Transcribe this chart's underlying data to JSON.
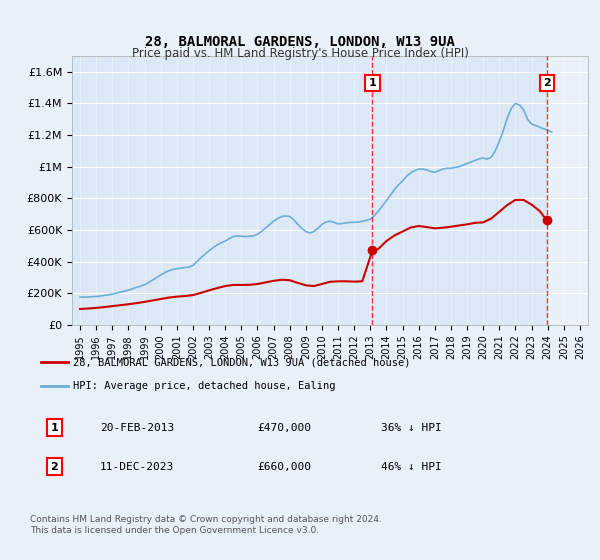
{
  "title": "28, BALMORAL GARDENS, LONDON, W13 9UA",
  "subtitle": "Price paid vs. HM Land Registry's House Price Index (HPI)",
  "background_color": "#e8f0f8",
  "plot_bg_color": "#dce8f5",
  "hpi_color": "#6baed6",
  "price_color": "#cc0000",
  "ylim": [
    0,
    1700000
  ],
  "yticks": [
    0,
    200000,
    400000,
    600000,
    800000,
    1000000,
    1200000,
    1400000,
    1600000
  ],
  "ytick_labels": [
    "£0",
    "£200K",
    "£400K",
    "£600K",
    "£800K",
    "£1M",
    "£1.2M",
    "£1.4M",
    "£1.6M"
  ],
  "xlabel_years": [
    "1995",
    "1996",
    "1997",
    "1998",
    "1999",
    "2000",
    "2001",
    "2002",
    "2003",
    "2004",
    "2005",
    "2006",
    "2007",
    "2008",
    "2009",
    "2010",
    "2011",
    "2012",
    "2013",
    "2014",
    "2015",
    "2016",
    "2017",
    "2018",
    "2019",
    "2020",
    "2021",
    "2022",
    "2023",
    "2024",
    "2025",
    "2026"
  ],
  "transaction1_x": 2013.13,
  "transaction1_y": 470000,
  "transaction1_label": "1",
  "transaction2_x": 2023.95,
  "transaction2_y": 660000,
  "transaction2_label": "2",
  "legend_line1": "28, BALMORAL GARDENS, LONDON, W13 9UA (detached house)",
  "legend_line2": "HPI: Average price, detached house, Ealing",
  "table_row1": [
    "1",
    "20-FEB-2013",
    "£470,000",
    "36% ↓ HPI"
  ],
  "table_row2": [
    "2",
    "11-DEC-2023",
    "£660,000",
    "46% ↓ HPI"
  ],
  "footer": "Contains HM Land Registry data © Crown copyright and database right 2024.\nThis data is licensed under the Open Government Licence v3.0.",
  "hpi_data_x": [
    1995.0,
    1995.25,
    1995.5,
    1995.75,
    1996.0,
    1996.25,
    1996.5,
    1996.75,
    1997.0,
    1997.25,
    1997.5,
    1997.75,
    1998.0,
    1998.25,
    1998.5,
    1998.75,
    1999.0,
    1999.25,
    1999.5,
    1999.75,
    2000.0,
    2000.25,
    2000.5,
    2000.75,
    2001.0,
    2001.25,
    2001.5,
    2001.75,
    2002.0,
    2002.25,
    2002.5,
    2002.75,
    2003.0,
    2003.25,
    2003.5,
    2003.75,
    2004.0,
    2004.25,
    2004.5,
    2004.75,
    2005.0,
    2005.25,
    2005.5,
    2005.75,
    2006.0,
    2006.25,
    2006.5,
    2006.75,
    2007.0,
    2007.25,
    2007.5,
    2007.75,
    2008.0,
    2008.25,
    2008.5,
    2008.75,
    2009.0,
    2009.25,
    2009.5,
    2009.75,
    2010.0,
    2010.25,
    2010.5,
    2010.75,
    2011.0,
    2011.25,
    2011.5,
    2011.75,
    2012.0,
    2012.25,
    2012.5,
    2012.75,
    2013.0,
    2013.25,
    2013.5,
    2013.75,
    2014.0,
    2014.25,
    2014.5,
    2014.75,
    2015.0,
    2015.25,
    2015.5,
    2015.75,
    2016.0,
    2016.25,
    2016.5,
    2016.75,
    2017.0,
    2017.25,
    2017.5,
    2017.75,
    2018.0,
    2018.25,
    2018.5,
    2018.75,
    2019.0,
    2019.25,
    2019.5,
    2019.75,
    2020.0,
    2020.25,
    2020.5,
    2020.75,
    2021.0,
    2021.25,
    2021.5,
    2021.75,
    2022.0,
    2022.25,
    2022.5,
    2022.75,
    2023.0,
    2023.25,
    2023.5,
    2023.75,
    2024.0,
    2024.25
  ],
  "hpi_data_y": [
    175000,
    175500,
    176000,
    178000,
    179000,
    182000,
    186000,
    190000,
    193000,
    200000,
    207000,
    213000,
    218000,
    228000,
    237000,
    244000,
    253000,
    267000,
    283000,
    299000,
    315000,
    330000,
    342000,
    350000,
    355000,
    358000,
    362000,
    365000,
    375000,
    400000,
    425000,
    448000,
    468000,
    488000,
    505000,
    518000,
    530000,
    545000,
    558000,
    562000,
    560000,
    558000,
    560000,
    563000,
    572000,
    590000,
    612000,
    634000,
    655000,
    672000,
    685000,
    688000,
    685000,
    665000,
    635000,
    610000,
    590000,
    580000,
    590000,
    610000,
    635000,
    650000,
    655000,
    648000,
    638000,
    640000,
    645000,
    648000,
    648000,
    650000,
    655000,
    660000,
    668000,
    690000,
    720000,
    752000,
    785000,
    820000,
    855000,
    885000,
    910000,
    940000,
    960000,
    975000,
    985000,
    985000,
    980000,
    970000,
    965000,
    975000,
    985000,
    990000,
    990000,
    995000,
    1000000,
    1010000,
    1020000,
    1030000,
    1040000,
    1050000,
    1055000,
    1048000,
    1060000,
    1100000,
    1160000,
    1230000,
    1310000,
    1370000,
    1400000,
    1390000,
    1360000,
    1300000,
    1270000,
    1260000,
    1250000,
    1240000,
    1230000,
    1220000
  ],
  "price_data_x": [
    1995.0,
    1995.5,
    1996.0,
    1996.5,
    1997.0,
    1997.5,
    1998.0,
    1998.5,
    1999.0,
    1999.5,
    2000.0,
    2000.5,
    2001.0,
    2001.5,
    2002.0,
    2002.5,
    2003.0,
    2003.5,
    2004.0,
    2004.5,
    2005.0,
    2005.5,
    2006.0,
    2006.5,
    2007.0,
    2007.5,
    2008.0,
    2008.5,
    2009.0,
    2009.5,
    2010.0,
    2010.5,
    2011.0,
    2011.5,
    2012.0,
    2012.5,
    2013.13,
    2013.5,
    2014.0,
    2014.5,
    2015.0,
    2015.5,
    2016.0,
    2016.5,
    2017.0,
    2017.5,
    2018.0,
    2018.5,
    2019.0,
    2019.5,
    2020.0,
    2020.5,
    2021.0,
    2021.5,
    2022.0,
    2022.5,
    2023.0,
    2023.5,
    2023.95
  ],
  "price_data_y": [
    100000,
    103000,
    107000,
    112000,
    118000,
    124000,
    130000,
    137000,
    145000,
    154000,
    163000,
    172000,
    178000,
    182000,
    188000,
    202000,
    218000,
    232000,
    245000,
    252000,
    252000,
    253000,
    258000,
    268000,
    278000,
    285000,
    282000,
    265000,
    250000,
    245000,
    258000,
    272000,
    275000,
    275000,
    273000,
    275000,
    470000,
    480000,
    530000,
    565000,
    590000,
    615000,
    625000,
    618000,
    610000,
    614000,
    620000,
    628000,
    635000,
    645000,
    648000,
    672000,
    715000,
    758000,
    790000,
    790000,
    760000,
    720000,
    660000
  ],
  "hatch_start_x": 2024.0,
  "xlim": [
    1994.5,
    2026.5
  ]
}
